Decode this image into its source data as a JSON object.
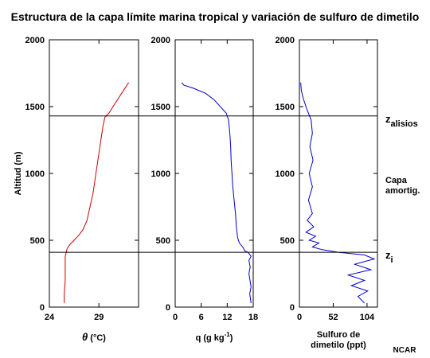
{
  "title": "Estructura de la capa límite marina tropical y variación de sulfuro de dimetilo",
  "credit": "NCAR",
  "chart_data": {
    "type": "line",
    "ylabel": "Altitud (m)",
    "ylim": [
      0,
      2000
    ],
    "yticks": [
      0,
      500,
      1000,
      1500,
      2000
    ],
    "ytick_labels": [
      "0",
      "500",
      "1000",
      "1500",
      "2000"
    ],
    "reference_lines": [
      {
        "y": 1430,
        "label": "z",
        "subscript": "alisios"
      },
      {
        "y": 410,
        "label": "z",
        "subscript": "i"
      }
    ],
    "layer_label": [
      "Capa",
      "amortig."
    ],
    "panels": [
      {
        "xlabel_parts": [
          "θ",
          " (°C)"
        ],
        "xlim": [
          24,
          33
        ],
        "xticks": [
          24,
          29
        ],
        "xtick_labels": [
          "24",
          "29"
        ],
        "series": [
          {
            "color": "#cc0000",
            "points": [
              [
                25.5,
                30
              ],
              [
                25.5,
                100
              ],
              [
                25.6,
                200
              ],
              [
                25.6,
                300
              ],
              [
                25.6,
                380
              ],
              [
                25.7,
                410
              ],
              [
                25.8,
                440
              ],
              [
                26.1,
                470
              ],
              [
                26.5,
                500
              ],
              [
                27.0,
                540
              ],
              [
                27.4,
                580
              ],
              [
                27.8,
                650
              ],
              [
                28.1,
                750
              ],
              [
                28.4,
                850
              ],
              [
                28.6,
                950
              ],
              [
                28.8,
                1050
              ],
              [
                29.0,
                1150
              ],
              [
                29.2,
                1250
              ],
              [
                29.4,
                1350
              ],
              [
                29.6,
                1420
              ],
              [
                30.0,
                1450
              ],
              [
                30.6,
                1520
              ],
              [
                31.3,
                1600
              ],
              [
                32.0,
                1680
              ]
            ]
          }
        ]
      },
      {
        "xlabel_parts": [
          "q  (g kg",
          "-1",
          ")"
        ],
        "xlim": [
          0,
          18
        ],
        "xticks": [
          0,
          6,
          12,
          18
        ],
        "xtick_labels": [
          "0",
          "6",
          "12",
          "18"
        ],
        "series": [
          {
            "color": "#0000cc",
            "points": [
              [
                17.5,
                30
              ],
              [
                17.2,
                100
              ],
              [
                17.5,
                150
              ],
              [
                17.0,
                250
              ],
              [
                17.3,
                300
              ],
              [
                17.0,
                350
              ],
              [
                17.5,
                380
              ],
              [
                16.8,
                410
              ],
              [
                16.0,
                420
              ],
              [
                15.8,
                440
              ],
              [
                14.8,
                480
              ],
              [
                14.4,
                520
              ],
              [
                14.1,
                600
              ],
              [
                13.9,
                700
              ],
              [
                13.6,
                800
              ],
              [
                13.3,
                900
              ],
              [
                13.1,
                1000
              ],
              [
                12.9,
                1100
              ],
              [
                12.8,
                1200
              ],
              [
                12.6,
                1300
              ],
              [
                12.3,
                1400
              ],
              [
                11.8,
                1450
              ],
              [
                9.0,
                1550
              ],
              [
                7.0,
                1600
              ],
              [
                4.0,
                1640
              ],
              [
                2.0,
                1660
              ],
              [
                1.5,
                1680
              ]
            ]
          }
        ]
      },
      {
        "xlabel_parts": [
          "Sulfuro de",
          "dimetilo (ppt)"
        ],
        "xlim": [
          0,
          120
        ],
        "xticks": [
          0,
          52,
          104
        ],
        "xtick_labels": [
          "0",
          "52",
          "104"
        ],
        "series": [
          {
            "color": "#0000cc",
            "points": [
              [
                100,
                30
              ],
              [
                90,
                80
              ],
              [
                105,
                120
              ],
              [
                80,
                160
              ],
              [
                100,
                200
              ],
              [
                75,
                240
              ],
              [
                110,
                280
              ],
              [
                85,
                320
              ],
              [
                115,
                360
              ],
              [
                100,
                390
              ],
              [
                60,
                410
              ],
              [
                35,
                430
              ],
              [
                20,
                450
              ],
              [
                30,
                480
              ],
              [
                15,
                500
              ],
              [
                25,
                530
              ],
              [
                10,
                560
              ],
              [
                22,
                600
              ],
              [
                12,
                650
              ],
              [
                20,
                700
              ],
              [
                14,
                800
              ],
              [
                20,
                900
              ],
              [
                15,
                1000
              ],
              [
                21,
                1100
              ],
              [
                16,
                1200
              ],
              [
                20,
                1300
              ],
              [
                18,
                1400
              ],
              [
                14,
                1450
              ],
              [
                10,
                1500
              ],
              [
                6,
                1560
              ],
              [
                3,
                1620
              ],
              [
                2,
                1680
              ]
            ]
          }
        ]
      }
    ]
  }
}
